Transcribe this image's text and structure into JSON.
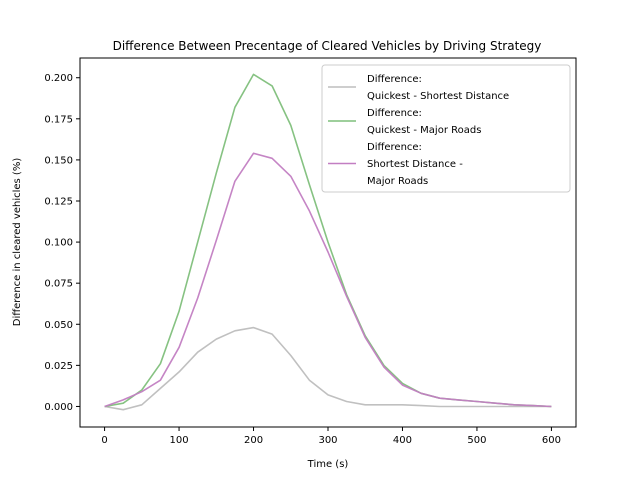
{
  "chart_data": {
    "type": "line",
    "title": "Difference Between Precentage of Cleared Vehicles by Driving Strategy",
    "xlabel": "Time (s)",
    "ylabel": "Difference in cleared vehicles (%)",
    "xlim": [
      -33,
      633
    ],
    "ylim": [
      -0.0125,
      0.212
    ],
    "xticks": [
      0,
      100,
      200,
      300,
      400,
      500,
      600
    ],
    "yticks": [
      0.0,
      0.025,
      0.05,
      0.075,
      0.1,
      0.125,
      0.15,
      0.175,
      0.2
    ],
    "xtick_labels": [
      "0",
      "100",
      "200",
      "300",
      "400",
      "500",
      "600"
    ],
    "ytick_labels": [
      "0.000",
      "0.025",
      "0.050",
      "0.075",
      "0.100",
      "0.125",
      "0.150",
      "0.175",
      "0.200"
    ],
    "grid": false,
    "legend_position": "top-right",
    "x": [
      0,
      25,
      50,
      75,
      100,
      125,
      150,
      175,
      200,
      225,
      250,
      275,
      300,
      325,
      350,
      375,
      400,
      425,
      450,
      475,
      500,
      525,
      550,
      575,
      600
    ],
    "series": [
      {
        "name": "Difference:\nQuickest - Shortest Distance",
        "color": "#bdbdbd",
        "values": [
          0.0,
          -0.002,
          0.001,
          0.011,
          0.021,
          0.033,
          0.041,
          0.046,
          0.048,
          0.044,
          0.031,
          0.016,
          0.007,
          0.003,
          0.001,
          0.001,
          0.001,
          0.0005,
          0.0,
          0.0,
          0.0,
          0.0,
          0.0,
          0.0,
          0.0
        ]
      },
      {
        "name": "Difference:\nQuickest - Major Roads",
        "color": "#7fbf7b",
        "values": [
          0.0,
          0.002,
          0.01,
          0.026,
          0.058,
          0.1,
          0.142,
          0.182,
          0.202,
          0.195,
          0.171,
          0.135,
          0.1,
          0.068,
          0.043,
          0.025,
          0.014,
          0.008,
          0.005,
          0.004,
          0.003,
          0.002,
          0.001,
          0.0005,
          0.0
        ]
      },
      {
        "name": "Difference:\nShortest Distance -\nMajor Roads",
        "color": "#c27ec2",
        "values": [
          0.0,
          0.004,
          0.009,
          0.016,
          0.036,
          0.066,
          0.101,
          0.137,
          0.154,
          0.151,
          0.14,
          0.119,
          0.094,
          0.067,
          0.042,
          0.024,
          0.013,
          0.008,
          0.005,
          0.004,
          0.003,
          0.002,
          0.001,
          0.0005,
          0.0
        ]
      }
    ]
  }
}
